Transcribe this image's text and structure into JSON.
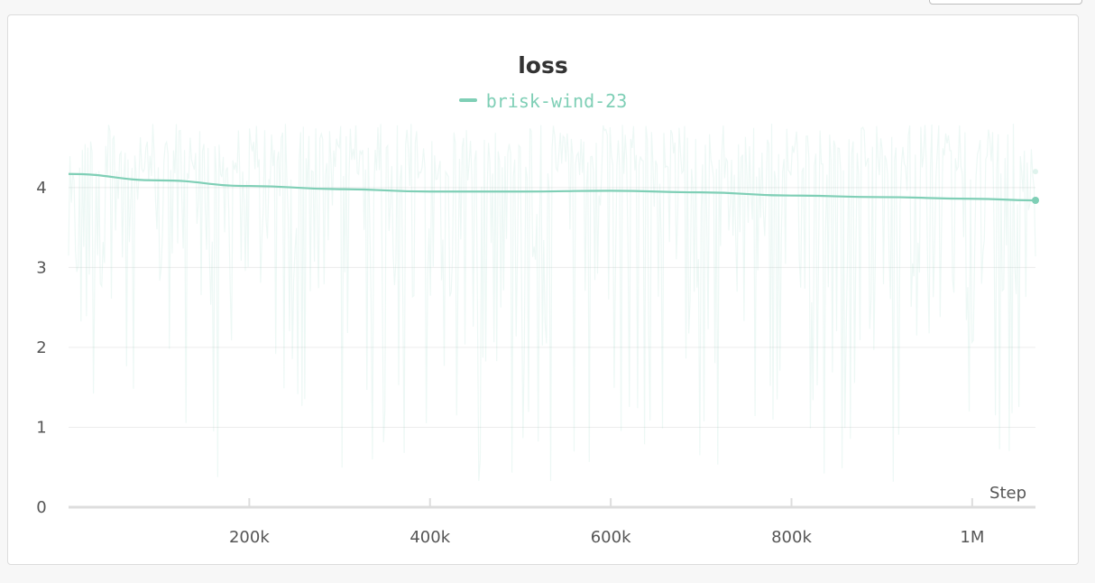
{
  "chart_data": {
    "type": "line",
    "title": "loss",
    "xlabel": "Step",
    "ylabel": "",
    "xlim": [
      0,
      1070000
    ],
    "ylim": [
      0,
      4.8
    ],
    "x_ticks": [
      {
        "value": 200000,
        "label": "200k"
      },
      {
        "value": 400000,
        "label": "400k"
      },
      {
        "value": 600000,
        "label": "600k"
      },
      {
        "value": 800000,
        "label": "800k"
      },
      {
        "value": 1000000,
        "label": "1M"
      }
    ],
    "y_ticks": [
      {
        "value": 0,
        "label": "0"
      },
      {
        "value": 1,
        "label": "1"
      },
      {
        "value": 2,
        "label": "2"
      },
      {
        "value": 3,
        "label": "3"
      },
      {
        "value": 4,
        "label": "4"
      }
    ],
    "grid": true,
    "legend_position": "top-center",
    "series": [
      {
        "name": "brisk-wind-23",
        "color": "#7fcfb6",
        "smoothed": {
          "x": [
            0,
            100000,
            200000,
            300000,
            400000,
            500000,
            600000,
            700000,
            800000,
            900000,
            1000000,
            1070000
          ],
          "y": [
            4.17,
            4.09,
            4.02,
            3.98,
            3.95,
            3.95,
            3.96,
            3.94,
            3.9,
            3.88,
            3.86,
            3.84
          ]
        },
        "raw_range": [
          0.3,
          4.8
        ]
      }
    ]
  }
}
